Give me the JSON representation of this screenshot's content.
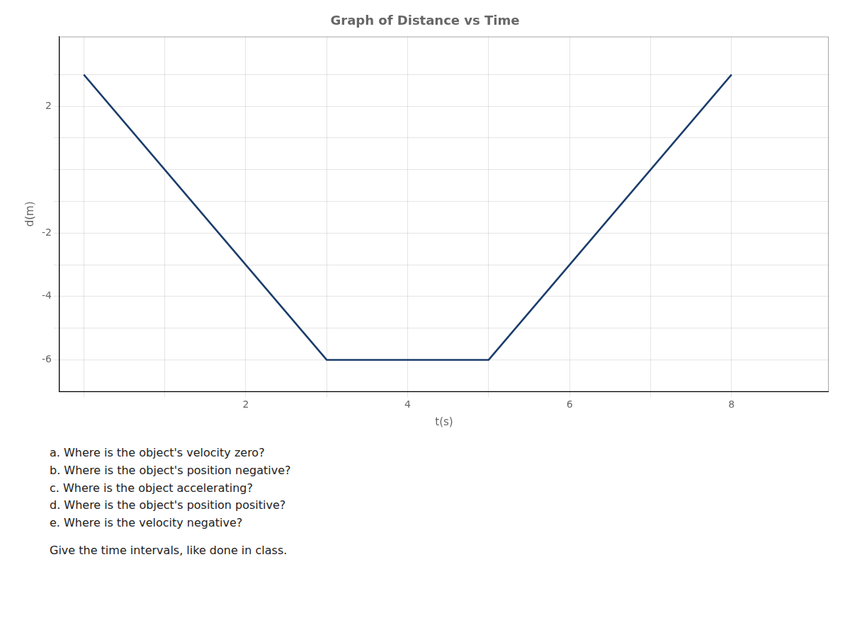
{
  "chart_data": {
    "type": "line",
    "title": "Graph of Distance vs Time",
    "xlabel": "t(s)",
    "ylabel": "d(m)",
    "x": [
      0,
      3,
      5,
      8
    ],
    "values": [
      3,
      -6,
      -6,
      3
    ],
    "color": "#1a3d6b",
    "xlim": [
      -0.3,
      9.2
    ],
    "ylim": [
      -7.0,
      4.2
    ],
    "xticks": [
      {
        "value": 0,
        "label": null
      },
      {
        "value": 1,
        "label": null
      },
      2,
      {
        "value": 3,
        "label": null
      },
      4,
      {
        "value": 5,
        "label": null
      },
      6,
      {
        "value": 7,
        "label": null
      },
      8
    ],
    "yticks": [
      -6,
      {
        "value": -5,
        "label": null
      },
      -4,
      {
        "value": -3,
        "label": null
      },
      -2,
      {
        "value": -1,
        "label": null
      },
      {
        "value": 0,
        "label": null
      },
      {
        "value": 1,
        "label": null
      },
      2,
      {
        "value": 3,
        "label": null
      }
    ],
    "grid": true,
    "annotations": [
      "a. Where is the object's velocity zero?",
      "b. Where is the object's position negative?",
      "c. Where is the object accelerating?",
      "d. Where is the object's position positive?",
      "e. Where is the velocity negative?",
      "Give the time intervals, like done in class."
    ]
  }
}
